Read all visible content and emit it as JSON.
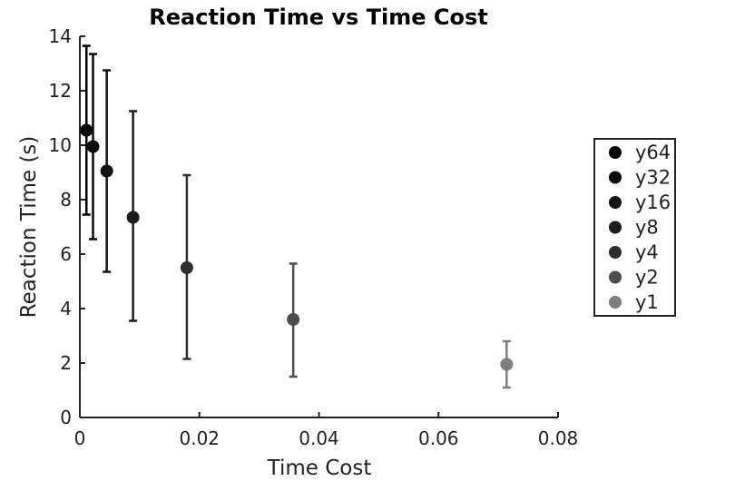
{
  "chart_data": {
    "type": "scatter",
    "title": "Reaction Time vs Time Cost",
    "xlabel": "Time Cost",
    "ylabel": "Reaction Time (s)",
    "xlim": [
      0,
      0.08
    ],
    "ylim": [
      0,
      14
    ],
    "x_ticks": [
      "0",
      "0.02",
      "0.04",
      "0.06",
      "0.08"
    ],
    "y_ticks": [
      "0",
      "2",
      "4",
      "6",
      "8",
      "10",
      "12",
      "14"
    ],
    "grid": false,
    "legend_position": "right",
    "series": [
      {
        "name": "y64",
        "x": 0.0011,
        "y": 10.55,
        "err_low": 7.45,
        "err_high": 13.65,
        "color": "#000000"
      },
      {
        "name": "y32",
        "x": 0.0022,
        "y": 9.95,
        "err_low": 6.55,
        "err_high": 13.35,
        "color": "#0a0a0a"
      },
      {
        "name": "y16",
        "x": 0.0045,
        "y": 9.05,
        "err_low": 5.35,
        "err_high": 12.75,
        "color": "#121212"
      },
      {
        "name": "y8",
        "x": 0.0089,
        "y": 7.35,
        "err_low": 3.55,
        "err_high": 11.25,
        "color": "#1c1c1c"
      },
      {
        "name": "y4",
        "x": 0.0179,
        "y": 5.5,
        "err_low": 2.15,
        "err_high": 8.9,
        "color": "#2e2e2e"
      },
      {
        "name": "y2",
        "x": 0.0357,
        "y": 3.6,
        "err_low": 1.5,
        "err_high": 5.65,
        "color": "#4d4d4d"
      },
      {
        "name": "y1",
        "x": 0.0714,
        "y": 1.95,
        "err_low": 1.1,
        "err_high": 2.8,
        "color": "#7f7f7f"
      }
    ]
  }
}
